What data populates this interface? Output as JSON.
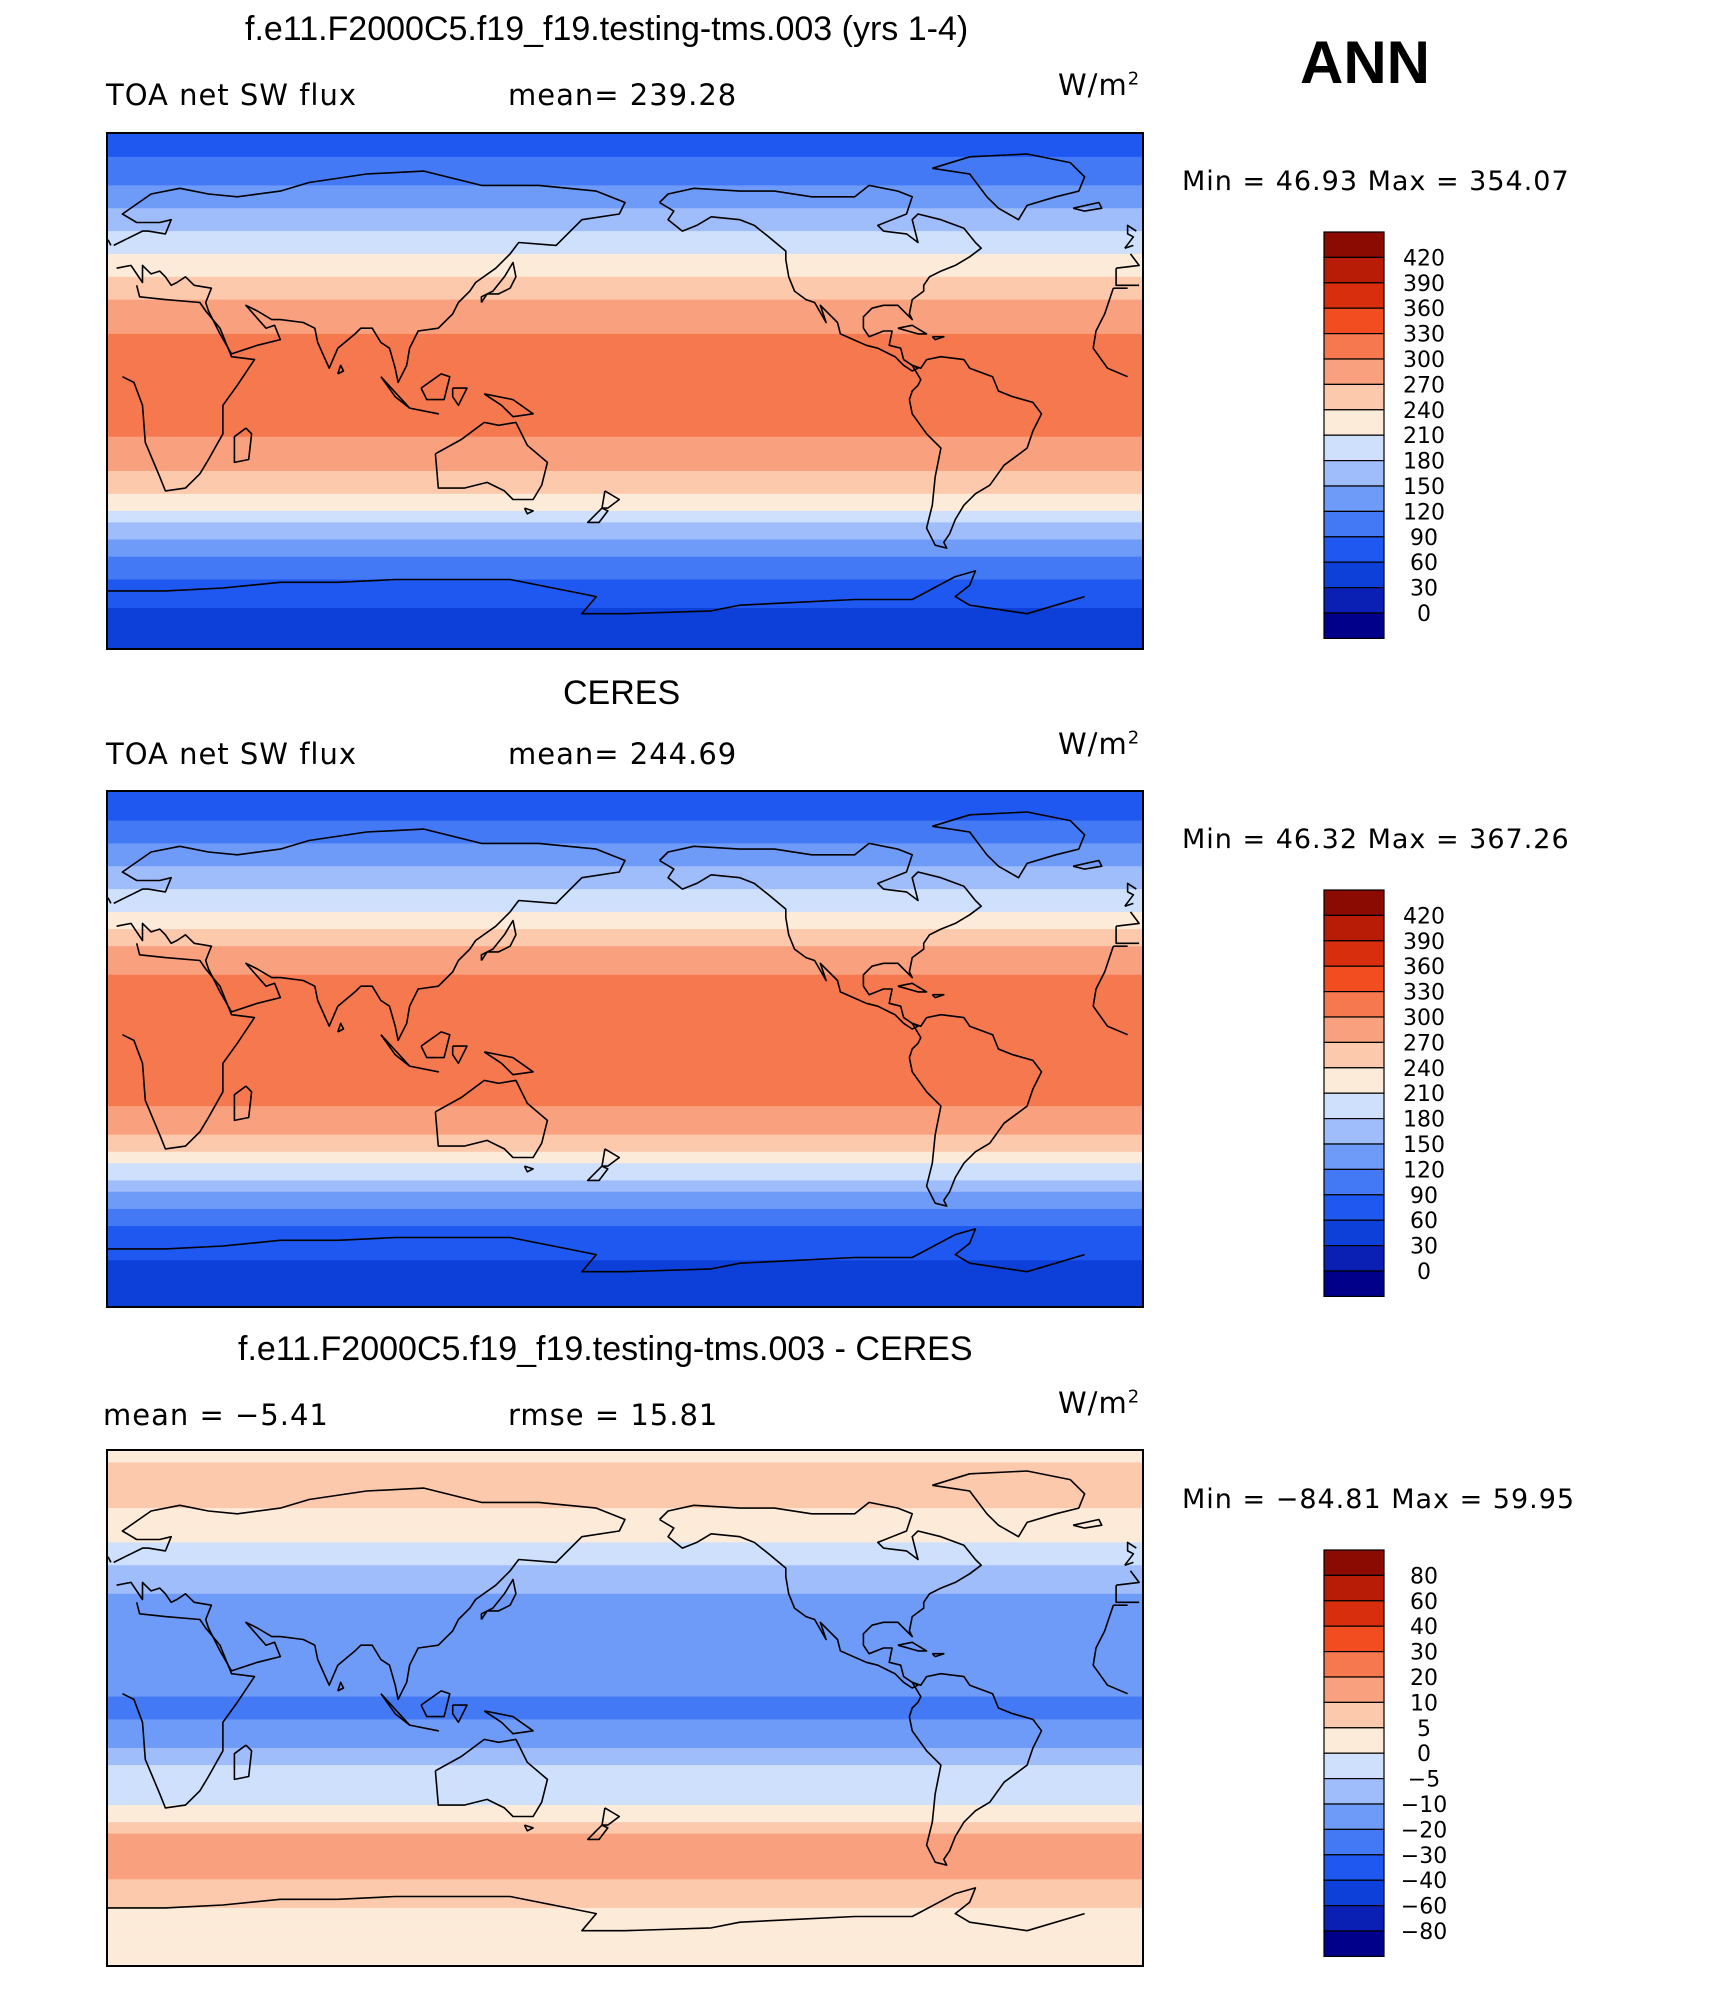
{
  "figure_label": "ANN",
  "colors": {
    "palette": [
      "#00008a",
      "#0a1fb3",
      "#0d3fd9",
      "#1e58f0",
      "#4479f5",
      "#6f9bf8",
      "#9fbdfb",
      "#cfe0fc",
      "#fdebd9",
      "#fcc9ad",
      "#f9a07e",
      "#f6784f",
      "#f24d21",
      "#d92e0d",
      "#b81c06",
      "#8b0a02"
    ]
  },
  "panels": [
    {
      "title": "f.e11.F2000C5.f19_f19.testing-tms.003 (yrs 1-4)",
      "left_label": "TOA net SW flux",
      "center_label": "mean= 239.28",
      "units_base": "W/m",
      "units_exp": "2",
      "minmax": "Min =   46.93 Max = 354.07",
      "colorbar_labels": [
        "420",
        "390",
        "360",
        "330",
        "300",
        "270",
        "240",
        "210",
        "180",
        "150",
        "120",
        "90",
        "60",
        "30",
        "0"
      ]
    },
    {
      "title": "CERES",
      "left_label": "TOA net SW flux",
      "center_label": "mean= 244.69",
      "units_base": "W/m",
      "units_exp": "2",
      "minmax": "Min =   46.32 Max = 367.26",
      "colorbar_labels": [
        "420",
        "390",
        "360",
        "330",
        "300",
        "270",
        "240",
        "210",
        "180",
        "150",
        "120",
        "90",
        "60",
        "30",
        "0"
      ]
    },
    {
      "title": "f.e11.F2000C5.f19_f19.testing-tms.003 - CERES",
      "left_label": "mean =   −5.41",
      "center_label": "rmse =   15.81",
      "units_base": "W/m",
      "units_exp": "2",
      "minmax": "Min = −84.81 Max =   59.95",
      "colorbar_labels": [
        "80",
        "60",
        "40",
        "30",
        "20",
        "10",
        "5",
        "0",
        "−5",
        "−10",
        "−20",
        "−30",
        "−40",
        "−60",
        "−80"
      ]
    }
  ],
  "chart_data": [
    {
      "type": "heatmap",
      "title": "f.e11.F2000C5.f19_f19.testing-tms.003 (yrs 1-4)",
      "variable": "TOA net SW flux",
      "units": "W/m2",
      "mean": 239.28,
      "min": 46.93,
      "max": 354.07,
      "levels": [
        0,
        30,
        60,
        90,
        120,
        150,
        180,
        210,
        240,
        270,
        300,
        330,
        360,
        390,
        420
      ],
      "zonal_profile": {
        "lat": [
          90,
          80,
          70,
          60,
          50,
          40,
          30,
          20,
          10,
          0,
          -10,
          -20,
          -30,
          -40,
          -50,
          -60,
          -70,
          -80,
          -90
        ],
        "values": [
          60,
          95,
          125,
          165,
          200,
          240,
          275,
          300,
          310,
          300,
          305,
          295,
          265,
          220,
          160,
          110,
          70,
          50,
          47
        ]
      }
    },
    {
      "type": "heatmap",
      "title": "CERES",
      "variable": "TOA net SW flux",
      "units": "W/m2",
      "mean": 244.69,
      "min": 46.32,
      "max": 367.26,
      "levels": [
        0,
        30,
        60,
        90,
        120,
        150,
        180,
        210,
        240,
        270,
        300,
        330,
        360,
        390,
        420
      ],
      "zonal_profile": {
        "lat": [
          90,
          80,
          70,
          60,
          50,
          40,
          30,
          20,
          10,
          0,
          -10,
          -20,
          -30,
          -40,
          -50,
          -60,
          -70,
          -80,
          -90
        ],
        "values": [
          60,
          90,
          125,
          165,
          205,
          250,
          290,
          315,
          325,
          325,
          320,
          300,
          270,
          215,
          150,
          100,
          65,
          50,
          46
        ]
      }
    },
    {
      "type": "heatmap",
      "title": "f.e11.F2000C5.f19_f19.testing-tms.003 - CERES",
      "variable": "TOA net SW flux difference",
      "units": "W/m2",
      "mean": -5.41,
      "rmse": 15.81,
      "min": -84.81,
      "max": 59.95,
      "levels": [
        -80,
        -60,
        -40,
        -30,
        -20,
        -10,
        -5,
        0,
        5,
        10,
        20,
        30,
        40,
        60,
        80
      ],
      "zonal_profile": {
        "lat": [
          90,
          80,
          70,
          60,
          50,
          40,
          30,
          20,
          10,
          0,
          -10,
          -20,
          -30,
          -40,
          -50,
          -60,
          -70,
          -80,
          -90
        ],
        "values": [
          3,
          8,
          5,
          2,
          -5,
          -10,
          -15,
          -15,
          -15,
          -25,
          -15,
          -5,
          -5,
          5,
          15,
          10,
          5,
          2,
          0
        ]
      }
    }
  ]
}
